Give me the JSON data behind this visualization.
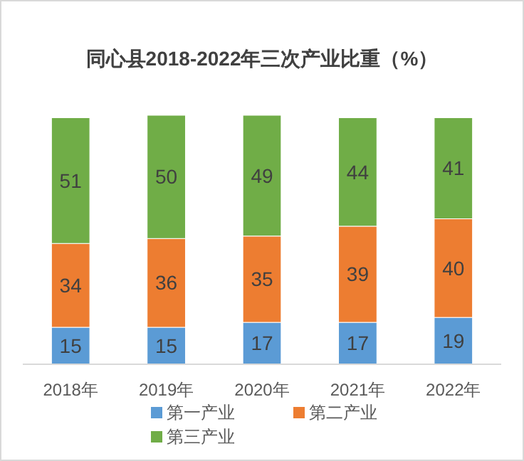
{
  "chart_data": {
    "type": "bar",
    "stacked": true,
    "title": "同心县2018-2022年三次产业比重（%）",
    "categories": [
      "2018年",
      "2019年",
      "2020年",
      "2021年",
      "2022年"
    ],
    "series": [
      {
        "name": "第一产业",
        "color": "#5b9bd5",
        "values": [
          15,
          15,
          17,
          17,
          19
        ]
      },
      {
        "name": "第二产业",
        "color": "#ed7d31",
        "values": [
          34,
          36,
          35,
          39,
          40
        ]
      },
      {
        "name": "第三产业",
        "color": "#70ad47",
        "values": [
          51,
          50,
          49,
          44,
          41
        ]
      }
    ],
    "data_labels": true,
    "legend": "bottom",
    "grid": false
  }
}
